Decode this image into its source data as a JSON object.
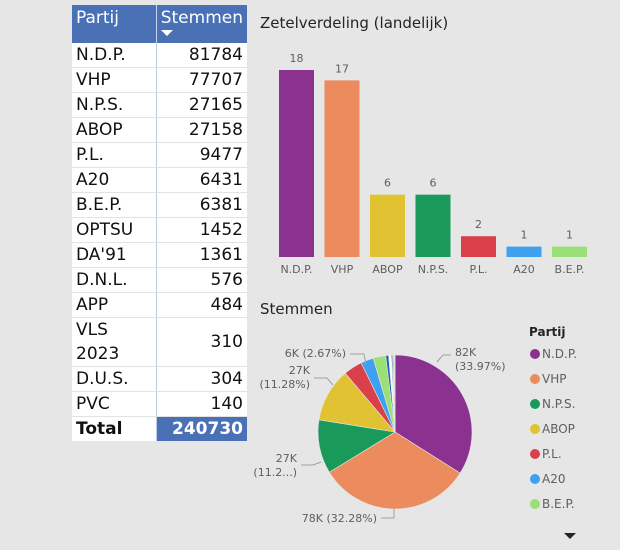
{
  "table": {
    "headers": {
      "party": "Partij",
      "votes": "Stemmen"
    },
    "sort_indicator": "sort-descending-icon",
    "rows": [
      {
        "party": "N.D.P.",
        "votes": "81784"
      },
      {
        "party": "VHP",
        "votes": "77707"
      },
      {
        "party": "N.P.S.",
        "votes": "27165"
      },
      {
        "party": "ABOP",
        "votes": "27158"
      },
      {
        "party": "P.L.",
        "votes": "9477"
      },
      {
        "party": "A20",
        "votes": "6431"
      },
      {
        "party": "B.E.P.",
        "votes": "6381"
      },
      {
        "party": "OPTSU",
        "votes": "1452"
      },
      {
        "party": "DA'91",
        "votes": "1361"
      },
      {
        "party": "D.N.L.",
        "votes": "576"
      },
      {
        "party": "APP",
        "votes": "484"
      },
      {
        "party": "VLS 2023",
        "votes": "310"
      },
      {
        "party": "D.U.S.",
        "votes": "304"
      },
      {
        "party": "PVC",
        "votes": "140"
      }
    ],
    "total": {
      "label": "Total",
      "votes": "240730"
    }
  },
  "colors": {
    "N.D.P.": "#8b3190",
    "VHP": "#ec8b5e",
    "N.P.S.": "#1a9a5a",
    "ABOP": "#e0c232",
    "P.L.": "#d9404a",
    "A20": "#3fa0f0",
    "B.E.P.": "#9be076",
    "OPTSU": "#1c5fb8",
    "DA'91": "#ffffff",
    "D.N.L.": "#2a6e9a",
    "APP": "#7a3f7a",
    "VLS 2023": "#b5468f",
    "D.U.S.": "#6b2a6b",
    "PVC": "#5c2e6e"
  },
  "chart_data": [
    {
      "type": "bar",
      "title": "Zetelverdeling (landelijk)",
      "categories": [
        "N.D.P.",
        "VHP",
        "ABOP",
        "N.P.S.",
        "P.L.",
        "A20",
        "B.E.P."
      ],
      "values": [
        18,
        17,
        6,
        6,
        2,
        1,
        1
      ],
      "xlabel": "",
      "ylabel": "",
      "ylim": [
        0,
        18
      ],
      "grid": false,
      "data_labels": true
    },
    {
      "type": "pie",
      "title": "Stemmen",
      "legend_title": "Partij",
      "legend_position": "right",
      "legend_visible": [
        "N.D.P.",
        "VHP",
        "N.P.S.",
        "ABOP",
        "P.L.",
        "A20",
        "B.E.P."
      ],
      "legend_more_indicator": "scroll-down-arrow-icon",
      "slices": [
        {
          "label": "N.D.P.",
          "value": 81784
        },
        {
          "label": "VHP",
          "value": 77707
        },
        {
          "label": "N.P.S.",
          "value": 27165
        },
        {
          "label": "ABOP",
          "value": 27158
        },
        {
          "label": "P.L.",
          "value": 9477
        },
        {
          "label": "A20",
          "value": 6431
        },
        {
          "label": "B.E.P.",
          "value": 6381
        },
        {
          "label": "OPTSU",
          "value": 1452
        },
        {
          "label": "DA'91",
          "value": 1361
        },
        {
          "label": "D.N.L.",
          "value": 576
        },
        {
          "label": "APP",
          "value": 484
        },
        {
          "label": "VLS 2023",
          "value": 310
        },
        {
          "label": "D.U.S.",
          "value": 304
        },
        {
          "label": "PVC",
          "value": 140
        }
      ],
      "data_labels": [
        {
          "slice": "N.D.P.",
          "lines": [
            "82K",
            "(33.97%)"
          ]
        },
        {
          "slice": "VHP",
          "lines": [
            "78K (32.28%)"
          ]
        },
        {
          "slice": "N.P.S.",
          "lines": [
            "27K",
            "(11.2...)"
          ]
        },
        {
          "slice": "ABOP",
          "lines": [
            "27K",
            "(11.28%)"
          ]
        },
        {
          "slice": "A20",
          "lines": [
            "6K (2.67%)"
          ]
        }
      ]
    }
  ]
}
